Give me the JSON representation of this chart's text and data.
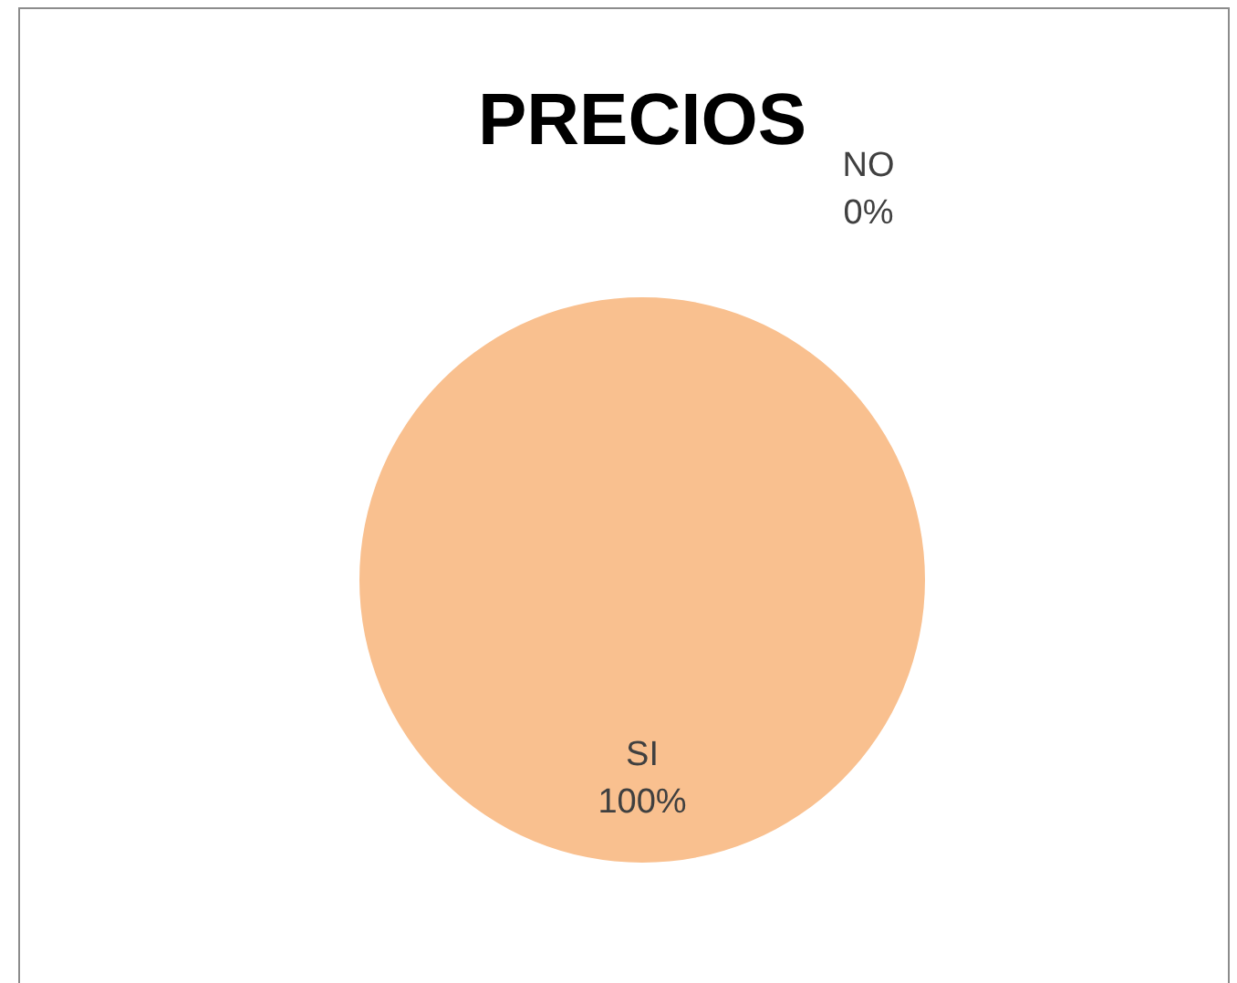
{
  "chart_data": {
    "type": "pie",
    "title": "PRECIOS",
    "categories": [
      "NO",
      "SI"
    ],
    "values": [
      0,
      100
    ],
    "colors": [
      "#4f81bd",
      "#f9c08f"
    ],
    "value_labels": [
      "0%",
      "100%"
    ],
    "legend": false
  }
}
